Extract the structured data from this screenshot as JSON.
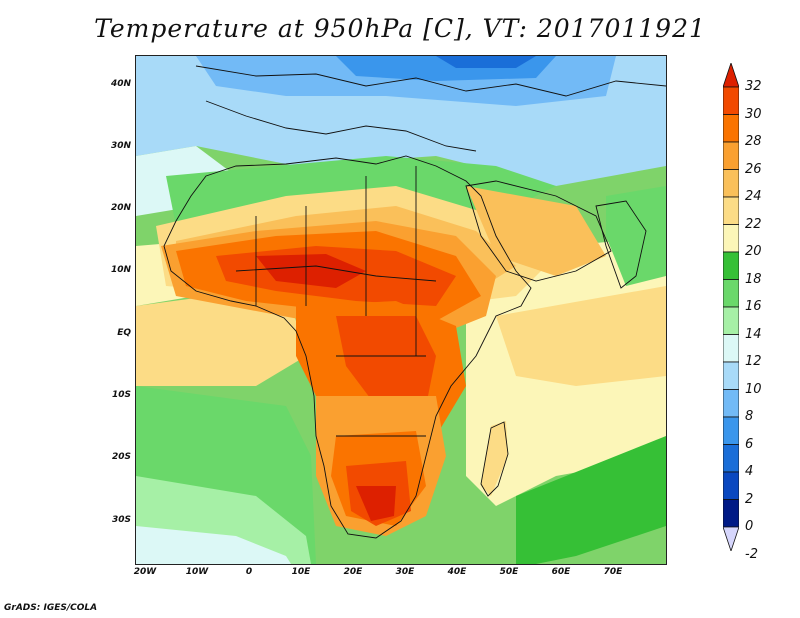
{
  "title": "Temperature at 950hPa [C], VT: 2017011921",
  "credit": "GrADS: IGES/COLA",
  "lat_labels": [
    "40N",
    "30N",
    "20N",
    "10N",
    "EQ",
    "10S",
    "20S",
    "30S"
  ],
  "lon_labels": [
    "20W",
    "10W",
    "0",
    "10E",
    "20E",
    "30E",
    "40E",
    "50E",
    "60E",
    "70E"
  ],
  "colorbar": {
    "labels": [
      "32",
      "30",
      "28",
      "26",
      "24",
      "22",
      "20",
      "18",
      "16",
      "14",
      "12",
      "10",
      "8",
      "6",
      "4",
      "2",
      "0",
      "-2"
    ],
    "colors": [
      "#dd2000",
      "#f24a00",
      "#fa7400",
      "#faa030",
      "#fac05a",
      "#fcdc86",
      "#fcf6b8",
      "#36c036",
      "#6ad86a",
      "#a6f0a6",
      "#dcf8f6",
      "#a8daf8",
      "#72baf6",
      "#3a96ec",
      "#1a6ed8",
      "#0a48c0",
      "#001a86",
      "#d6d6fc"
    ]
  }
}
